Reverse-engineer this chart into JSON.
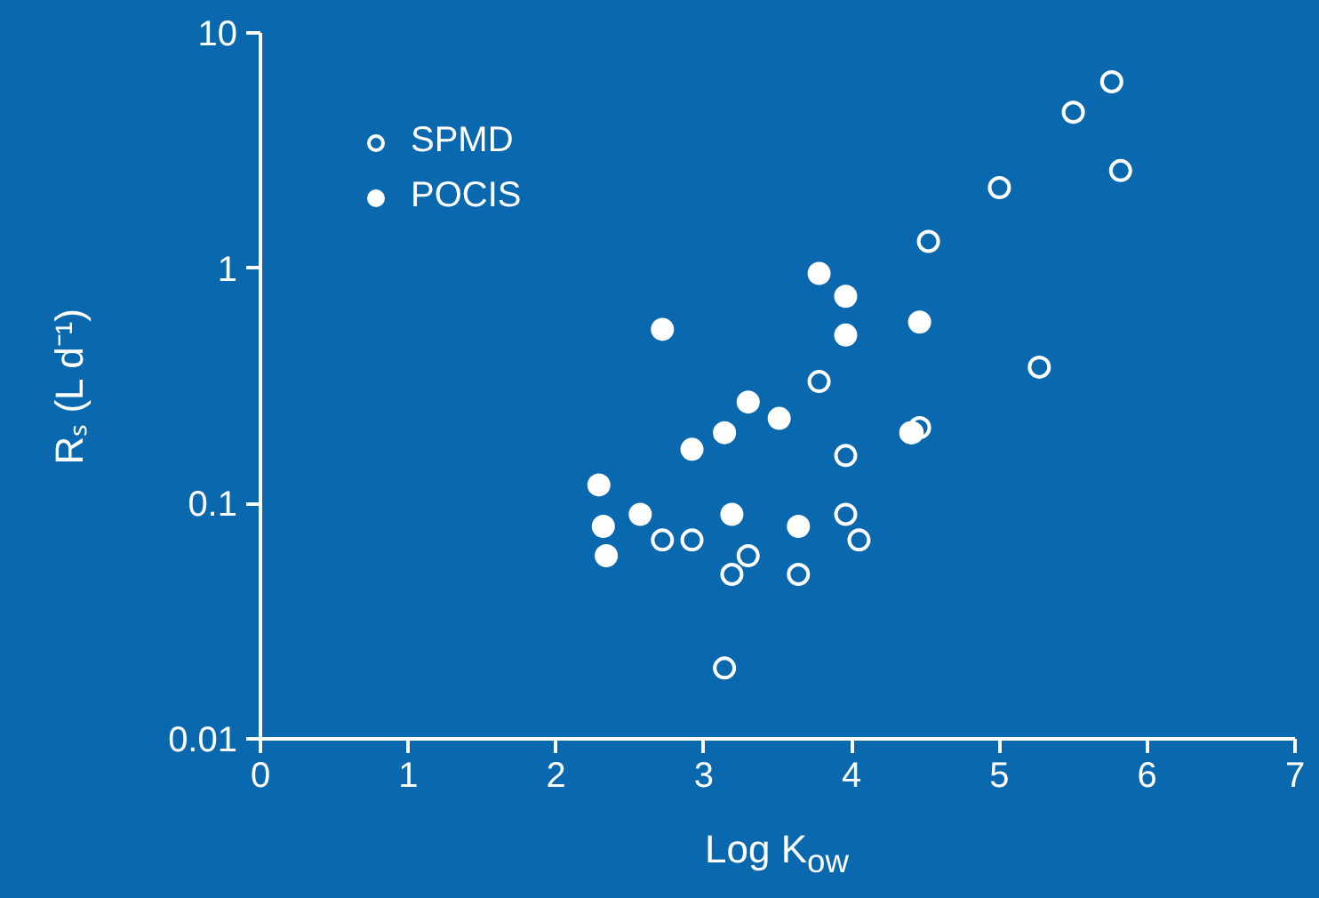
{
  "chart_data": {
    "type": "scatter",
    "xlabel": "Log K$_{ow}$",
    "ylabel": "Rₛ (L d⁻¹)",
    "log": "y",
    "xlim": [
      0,
      7
    ],
    "xticks": [
      0,
      1,
      2,
      3,
      4,
      5,
      6,
      7
    ],
    "ylim": [
      0.01,
      10
    ],
    "yticks": [
      0.01,
      0.1,
      1,
      10
    ],
    "grid": false,
    "legend": "top left",
    "series": [
      {
        "name": "SPMD",
        "color": "#ffffff",
        "marker": "circle_open",
        "x": [
          2.72,
          2.92,
          3.3,
          3.19,
          3.64,
          3.96,
          3.78,
          3.96,
          4.05,
          3.14,
          4.46,
          4.4,
          5.76,
          5.5,
          5.82,
          5.0,
          4.52,
          5.27
        ],
        "values": [
          0.07,
          0.07,
          0.06,
          0.05,
          0.05,
          0.16,
          0.33,
          0.09,
          0.07,
          0.02,
          0.21,
          0.2,
          6.2,
          4.6,
          2.6,
          2.2,
          1.3,
          0.38
        ]
      },
      {
        "name": "POCIS",
        "color": "#ffffff",
        "marker": "circle",
        "x": [
          3.78,
          3.96,
          2.72,
          3.96,
          4.46,
          3.3,
          3.51,
          3.14,
          2.92,
          4.41,
          2.29,
          2.57,
          3.19,
          2.32,
          3.64,
          2.34
        ],
        "values": [
          0.95,
          0.76,
          0.55,
          0.52,
          0.59,
          0.27,
          0.23,
          0.2,
          0.17,
          0.2,
          0.12,
          0.09,
          0.09,
          0.08,
          0.08,
          0.06
        ]
      }
    ]
  }
}
